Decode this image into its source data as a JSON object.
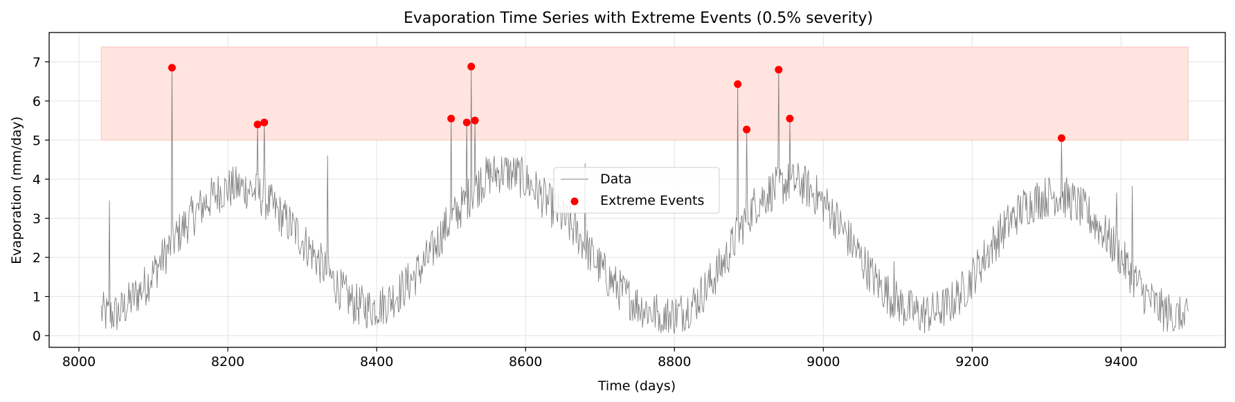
{
  "colors": {
    "data_line": "#808080",
    "extreme_marker": "#ff0000",
    "band_fill": "#ffe4df",
    "band_stroke": "#f7c6bc",
    "grid": "#e6e6e6"
  },
  "chart_data": {
    "type": "line",
    "title": "Evaporation Time Series with Extreme Events (0.5% severity)",
    "xlabel": "Time (days)",
    "ylabel": "Evaporation (mm/day)",
    "xlim": [
      7960,
      9540
    ],
    "ylim": [
      -0.3,
      7.75
    ],
    "x_ticks": [
      8000,
      8200,
      8400,
      8600,
      8800,
      9000,
      9200,
      9400
    ],
    "y_ticks": [
      0,
      1,
      2,
      3,
      4,
      5,
      6,
      7
    ],
    "grid": true,
    "legend_position": "center",
    "shaded_band": {
      "x": [
        8030,
        9490
      ],
      "y": [
        5.0,
        7.38
      ]
    },
    "series": [
      {
        "name": "Data",
        "style": "line",
        "description": "daily evaporation, seasonal sinusoid with noise",
        "x_start": 8030,
        "x_end": 9490,
        "anchor_points": [
          [
            8030,
            0.6
          ],
          [
            8040,
            0.5
          ],
          [
            8055,
            0.6
          ],
          [
            8070,
            0.9
          ],
          [
            8090,
            1.3
          ],
          [
            8110,
            1.9
          ],
          [
            8130,
            2.5
          ],
          [
            8150,
            3.0
          ],
          [
            8170,
            3.4
          ],
          [
            8190,
            3.7
          ],
          [
            8210,
            3.8
          ],
          [
            8230,
            3.75
          ],
          [
            8250,
            3.5
          ],
          [
            8270,
            3.1
          ],
          [
            8290,
            2.7
          ],
          [
            8310,
            2.2
          ],
          [
            8330,
            1.7
          ],
          [
            8350,
            1.2
          ],
          [
            8370,
            0.8
          ],
          [
            8390,
            0.7
          ],
          [
            8410,
            0.8
          ],
          [
            8430,
            1.1
          ],
          [
            8450,
            1.5
          ],
          [
            8470,
            2.0
          ],
          [
            8490,
            2.7
          ],
          [
            8510,
            3.2
          ],
          [
            8530,
            3.7
          ],
          [
            8550,
            4.1
          ],
          [
            8570,
            4.2
          ],
          [
            8590,
            4.1
          ],
          [
            8610,
            3.8
          ],
          [
            8630,
            3.4
          ],
          [
            8650,
            3.0
          ],
          [
            8670,
            2.6
          ],
          [
            8690,
            2.0
          ],
          [
            8710,
            1.5
          ],
          [
            8730,
            1.1
          ],
          [
            8750,
            0.8
          ],
          [
            8770,
            0.6
          ],
          [
            8790,
            0.5
          ],
          [
            8810,
            0.6
          ],
          [
            8830,
            0.9
          ],
          [
            8850,
            1.4
          ],
          [
            8870,
            2.0
          ],
          [
            8890,
            2.8
          ],
          [
            8910,
            3.4
          ],
          [
            8930,
            3.7
          ],
          [
            8950,
            3.9
          ],
          [
            8970,
            3.9
          ],
          [
            8990,
            3.6
          ],
          [
            9010,
            3.2
          ],
          [
            9030,
            2.6
          ],
          [
            9050,
            2.0
          ],
          [
            9070,
            1.4
          ],
          [
            9090,
            1.0
          ],
          [
            9110,
            0.7
          ],
          [
            9130,
            0.55
          ],
          [
            9150,
            0.6
          ],
          [
            9170,
            0.8
          ],
          [
            9190,
            1.2
          ],
          [
            9210,
            1.8
          ],
          [
            9230,
            2.4
          ],
          [
            9250,
            2.9
          ],
          [
            9270,
            3.3
          ],
          [
            9290,
            3.5
          ],
          [
            9310,
            3.6
          ],
          [
            9330,
            3.5
          ],
          [
            9350,
            3.2
          ],
          [
            9370,
            2.8
          ],
          [
            9390,
            2.3
          ],
          [
            9410,
            1.7
          ],
          [
            9430,
            1.1
          ],
          [
            9450,
            0.7
          ],
          [
            9470,
            0.5
          ],
          [
            9490,
            0.4
          ]
        ],
        "spikes": [
          [
            8041,
            3.45
          ],
          [
            8125,
            6.85
          ],
          [
            8240,
            5.4
          ],
          [
            8249,
            5.45
          ],
          [
            8334,
            4.6
          ],
          [
            8500,
            5.55
          ],
          [
            8521,
            5.45
          ],
          [
            8527,
            6.88
          ],
          [
            8532,
            5.5
          ],
          [
            8540,
            4.3
          ],
          [
            8680,
            4.4
          ],
          [
            8885,
            6.43
          ],
          [
            8897,
            5.27
          ],
          [
            8940,
            6.8
          ],
          [
            8955,
            5.55
          ],
          [
            9095,
            1.9
          ],
          [
            9320,
            5.05
          ],
          [
            9394,
            3.65
          ],
          [
            9415,
            3.82
          ]
        ]
      },
      {
        "name": "Extreme Events",
        "style": "scatter",
        "points": [
          [
            8125,
            6.85
          ],
          [
            8240,
            5.4
          ],
          [
            8249,
            5.45
          ],
          [
            8500,
            5.55
          ],
          [
            8521,
            5.45
          ],
          [
            8527,
            6.88
          ],
          [
            8532,
            5.5
          ],
          [
            8885,
            6.43
          ],
          [
            8897,
            5.27
          ],
          [
            8940,
            6.8
          ],
          [
            8955,
            5.55
          ],
          [
            9320,
            5.05
          ]
        ]
      }
    ]
  }
}
